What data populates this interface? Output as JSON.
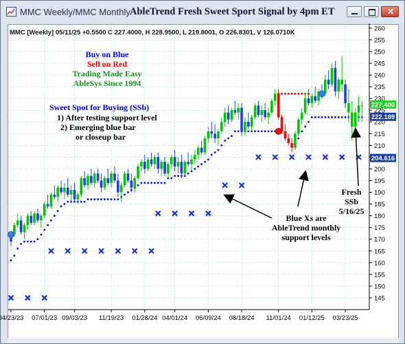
{
  "window": {
    "title": "MMC Weekly/MMC Monthly",
    "chart_title": "AbleTrend Fresh Sweet Sport Signal by 4pm ET",
    "icon": "chart-app-icon",
    "buttons": [
      "minimize-icon",
      "restore-icon",
      "close-icon"
    ]
  },
  "colors": {
    "up_candle": "#00c800",
    "down_candle": "#1e3cff",
    "sell_candle": "#ff0000",
    "grid": "#9fe3e3",
    "blue_label": "#0000ff",
    "green_label": "#1e8f1e",
    "price_tag_green": "#2ecc2e",
    "price_tag_blue": "#1f3f9e"
  },
  "header_line": "MMC [Weekly] 05/11/25 +0.5500 C 227.4000, H 228.9500, L 219.8001, O 226.8301, V 126.0710K",
  "legend": {
    "line1": "Buy on Blue",
    "line2": "Sell on Red",
    "line3": "Trading Made Easy",
    "line4": "AbleSys Since 1994"
  },
  "sweet_spot": {
    "title": "Sweet Spot for Buying (SSb)",
    "item1": "1) After testing support level",
    "item2": "2) Emerging blue bar",
    "item3": "or closeup bar"
  },
  "annotations": {
    "blue_xs": [
      "Blue Xs are",
      "AbleTrend monthly",
      "support levels"
    ],
    "fresh": [
      "Fresh",
      "SSb",
      "5/16/25"
    ]
  },
  "price_tags": [
    "227.400",
    "222.189",
    "204.616"
  ],
  "chart_data": {
    "type": "candlestick",
    "ylim": [
      140,
      262
    ],
    "y_ticks": [
      145,
      150,
      155,
      160,
      165,
      170,
      175,
      180,
      185,
      190,
      195,
      200,
      205,
      210,
      215,
      220,
      225,
      230,
      235,
      240,
      245,
      250,
      255,
      260
    ],
    "x_ticks": [
      {
        "label": "04/23/23",
        "week": 0
      },
      {
        "label": "07/01/23",
        "week": 10
      },
      {
        "label": "09/03/23",
        "week": 19
      },
      {
        "label": "11/19/23",
        "week": 30
      },
      {
        "label": "01/28/24",
        "week": 40
      },
      {
        "label": "04/01/24",
        "week": 49
      },
      {
        "label": "06/09/24",
        "week": 59
      },
      {
        "label": "08/18/24",
        "week": 69
      },
      {
        "label": "11/01/24",
        "week": 80
      },
      {
        "label": "01/12/25",
        "week": 90
      },
      {
        "label": "03/23/25",
        "week": 100
      }
    ],
    "weeks": 108,
    "candles": [
      [
        0,
        169,
        173,
        167,
        172,
        "B"
      ],
      [
        1,
        172,
        177,
        171,
        176,
        "U"
      ],
      [
        2,
        176,
        181,
        175,
        178,
        "U"
      ],
      [
        3,
        178,
        180,
        172,
        173,
        "D"
      ],
      [
        4,
        173,
        177,
        170,
        176,
        "U"
      ],
      [
        5,
        176,
        181,
        174,
        180,
        "U"
      ],
      [
        6,
        180,
        182,
        176,
        177,
        "D"
      ],
      [
        7,
        177,
        182,
        176,
        181,
        "U"
      ],
      [
        8,
        181,
        183,
        177,
        178,
        "D"
      ],
      [
        9,
        178,
        181,
        175,
        180,
        "U"
      ],
      [
        10,
        180,
        186,
        179,
        185,
        "U"
      ],
      [
        11,
        185,
        189,
        183,
        184,
        "D"
      ],
      [
        12,
        184,
        190,
        183,
        189,
        "U"
      ],
      [
        13,
        189,
        193,
        187,
        188,
        "D"
      ],
      [
        14,
        188,
        193,
        186,
        192,
        "U"
      ],
      [
        15,
        192,
        195,
        189,
        190,
        "D"
      ],
      [
        16,
        190,
        194,
        187,
        192,
        "U"
      ],
      [
        17,
        192,
        196,
        188,
        189,
        "D"
      ],
      [
        18,
        189,
        193,
        186,
        191,
        "U"
      ],
      [
        19,
        191,
        194,
        186,
        187,
        "D"
      ],
      [
        20,
        187,
        190,
        185,
        189,
        "U"
      ],
      [
        21,
        189,
        197,
        188,
        196,
        "U"
      ],
      [
        22,
        196,
        199,
        192,
        193,
        "D"
      ],
      [
        23,
        193,
        198,
        191,
        197,
        "U"
      ],
      [
        24,
        197,
        200,
        193,
        194,
        "D"
      ],
      [
        25,
        194,
        199,
        192,
        198,
        "U"
      ],
      [
        26,
        198,
        200,
        194,
        195,
        "D"
      ],
      [
        27,
        195,
        198,
        190,
        192,
        "D"
      ],
      [
        28,
        192,
        197,
        191,
        196,
        "U"
      ],
      [
        29,
        196,
        200,
        193,
        194,
        "D"
      ],
      [
        30,
        194,
        199,
        192,
        198,
        "U"
      ],
      [
        31,
        198,
        201,
        194,
        195,
        "D"
      ],
      [
        32,
        195,
        198,
        188,
        190,
        "D"
      ],
      [
        33,
        190,
        194,
        186,
        193,
        "U"
      ],
      [
        34,
        193,
        199,
        192,
        198,
        "U"
      ],
      [
        35,
        198,
        200,
        194,
        195,
        "D"
      ],
      [
        36,
        195,
        198,
        190,
        192,
        "D"
      ],
      [
        37,
        192,
        197,
        190,
        196,
        "U"
      ],
      [
        38,
        196,
        202,
        195,
        201,
        "U"
      ],
      [
        39,
        201,
        204,
        199,
        203,
        "U"
      ],
      [
        40,
        203,
        206,
        198,
        200,
        "D"
      ],
      [
        41,
        200,
        205,
        199,
        204,
        "U"
      ],
      [
        42,
        204,
        207,
        201,
        202,
        "D"
      ],
      [
        43,
        202,
        206,
        200,
        205,
        "U"
      ],
      [
        44,
        205,
        207,
        198,
        200,
        "D"
      ],
      [
        45,
        200,
        204,
        197,
        203,
        "U"
      ],
      [
        46,
        203,
        205,
        197,
        198,
        "D"
      ],
      [
        47,
        198,
        203,
        196,
        202,
        "U"
      ],
      [
        48,
        202,
        206,
        200,
        205,
        "U"
      ],
      [
        49,
        205,
        208,
        199,
        201,
        "D"
      ],
      [
        50,
        201,
        205,
        198,
        203,
        "U"
      ],
      [
        51,
        203,
        206,
        196,
        198,
        "D"
      ],
      [
        52,
        198,
        204,
        197,
        203,
        "U"
      ],
      [
        53,
        203,
        207,
        201,
        202,
        "D"
      ],
      [
        54,
        202,
        206,
        199,
        204,
        "U"
      ],
      [
        55,
        204,
        208,
        202,
        206,
        "U"
      ],
      [
        56,
        206,
        210,
        204,
        209,
        "U"
      ],
      [
        57,
        209,
        212,
        206,
        207,
        "D"
      ],
      [
        58,
        207,
        214,
        206,
        213,
        "U"
      ],
      [
        59,
        213,
        218,
        211,
        216,
        "U"
      ],
      [
        60,
        216,
        220,
        213,
        215,
        "D"
      ],
      [
        61,
        215,
        219,
        211,
        213,
        "D"
      ],
      [
        62,
        213,
        217,
        210,
        216,
        "U"
      ],
      [
        63,
        216,
        222,
        215,
        220,
        "U"
      ],
      [
        64,
        220,
        226,
        218,
        224,
        "U"
      ],
      [
        65,
        224,
        227,
        219,
        221,
        "D"
      ],
      [
        66,
        221,
        226,
        220,
        225,
        "U"
      ],
      [
        67,
        225,
        229,
        223,
        224,
        "D"
      ],
      [
        68,
        224,
        228,
        221,
        226,
        "U"
      ],
      [
        69,
        226,
        228,
        214,
        216,
        "D"
      ],
      [
        70,
        216,
        222,
        214,
        220,
        "U"
      ],
      [
        71,
        220,
        224,
        217,
        218,
        "D"
      ],
      [
        72,
        218,
        223,
        216,
        222,
        "U"
      ],
      [
        73,
        222,
        228,
        221,
        227,
        "U"
      ],
      [
        74,
        227,
        229,
        222,
        223,
        "D"
      ],
      [
        75,
        223,
        227,
        220,
        225,
        "U"
      ],
      [
        76,
        225,
        228,
        221,
        222,
        "D"
      ],
      [
        77,
        222,
        226,
        219,
        224,
        "U"
      ],
      [
        78,
        224,
        230,
        223,
        229,
        "U"
      ],
      [
        79,
        229,
        234,
        227,
        232,
        "U"
      ],
      [
        80,
        232,
        234,
        221,
        222,
        "S"
      ],
      [
        81,
        222,
        223,
        215,
        216,
        "S"
      ],
      [
        82,
        216,
        219,
        212,
        213,
        "S"
      ],
      [
        83,
        213,
        215,
        210,
        211,
        "S"
      ],
      [
        84,
        211,
        213,
        207,
        209,
        "S"
      ],
      [
        85,
        209,
        216,
        208,
        215,
        "U"
      ],
      [
        86,
        215,
        222,
        214,
        221,
        "U"
      ],
      [
        87,
        221,
        226,
        219,
        224,
        "U"
      ],
      [
        88,
        224,
        232,
        223,
        230,
        "U"
      ],
      [
        89,
        230,
        234,
        227,
        228,
        "D"
      ],
      [
        90,
        228,
        232,
        226,
        231,
        "U"
      ],
      [
        91,
        231,
        235,
        228,
        229,
        "D"
      ],
      [
        92,
        229,
        234,
        227,
        233,
        "U"
      ],
      [
        93,
        233,
        236,
        230,
        232,
        "B"
      ],
      [
        94,
        232,
        240,
        231,
        238,
        "U"
      ],
      [
        95,
        238,
        242,
        234,
        236,
        "D"
      ],
      [
        96,
        236,
        245,
        235,
        243,
        "U"
      ],
      [
        97,
        243,
        246,
        231,
        233,
        "D"
      ],
      [
        98,
        233,
        239,
        230,
        238,
        "U"
      ],
      [
        99,
        238,
        248,
        233,
        236,
        "U"
      ],
      [
        100,
        236,
        238,
        226,
        228,
        "D"
      ],
      [
        101,
        228,
        234,
        220,
        224,
        "U"
      ],
      [
        102,
        224,
        229,
        212,
        218,
        "U"
      ],
      [
        103,
        218,
        226,
        214,
        224,
        "U"
      ],
      [
        104,
        224,
        231,
        220,
        227,
        "U"
      ],
      [
        105,
        227,
        229,
        220,
        227,
        "U"
      ]
    ],
    "support_dots": [
      [
        0,
        161
      ],
      [
        1,
        163
      ],
      [
        2,
        166
      ],
      [
        3,
        168
      ],
      [
        4,
        169
      ],
      [
        5,
        169
      ],
      [
        6,
        169
      ],
      [
        7,
        169
      ],
      [
        8,
        170
      ],
      [
        9,
        172
      ],
      [
        10,
        174
      ],
      [
        11,
        176
      ],
      [
        12,
        178
      ],
      [
        13,
        180
      ],
      [
        14,
        182
      ],
      [
        15,
        184
      ],
      [
        16,
        185
      ],
      [
        17,
        186
      ],
      [
        18,
        186
      ],
      [
        19,
        186
      ],
      [
        20,
        186
      ],
      [
        21,
        186
      ],
      [
        22,
        186
      ],
      [
        23,
        187
      ],
      [
        24,
        187
      ],
      [
        25,
        187
      ],
      [
        26,
        187
      ],
      [
        27,
        187
      ],
      [
        28,
        187
      ],
      [
        29,
        187
      ],
      [
        30,
        187
      ],
      [
        31,
        187
      ],
      [
        32,
        187
      ],
      [
        33,
        188
      ],
      [
        34,
        189
      ],
      [
        35,
        190
      ],
      [
        36,
        191
      ],
      [
        37,
        192
      ],
      [
        38,
        193
      ],
      [
        39,
        194
      ],
      [
        40,
        194
      ],
      [
        41,
        194
      ],
      [
        42,
        194
      ],
      [
        43,
        194
      ],
      [
        44,
        194
      ],
      [
        45,
        194
      ],
      [
        46,
        194
      ],
      [
        47,
        196
      ],
      [
        48,
        196
      ],
      [
        49,
        197
      ],
      [
        50,
        197
      ],
      [
        51,
        197
      ],
      [
        52,
        197
      ],
      [
        53,
        198
      ],
      [
        54,
        199
      ],
      [
        55,
        200
      ],
      [
        56,
        201
      ],
      [
        57,
        202
      ],
      [
        58,
        203
      ],
      [
        59,
        204
      ],
      [
        60,
        206
      ],
      [
        61,
        207
      ],
      [
        62,
        208
      ],
      [
        63,
        210
      ],
      [
        64,
        212
      ],
      [
        65,
        213
      ],
      [
        66,
        214
      ],
      [
        67,
        216
      ],
      [
        68,
        216
      ],
      [
        69,
        216
      ],
      [
        70,
        216
      ],
      [
        71,
        216
      ],
      [
        72,
        216
      ],
      [
        73,
        216
      ],
      [
        74,
        216
      ],
      [
        75,
        216
      ],
      [
        76,
        216
      ],
      [
        77,
        216
      ],
      [
        78,
        216
      ],
      [
        79,
        216
      ],
      [
        85,
        210
      ],
      [
        86,
        213
      ],
      [
        87,
        216
      ],
      [
        88,
        218
      ],
      [
        89,
        220
      ],
      [
        90,
        222
      ],
      [
        91,
        222
      ],
      [
        92,
        222
      ],
      [
        93,
        222
      ],
      [
        94,
        222
      ],
      [
        95,
        222
      ],
      [
        96,
        222
      ],
      [
        97,
        222
      ],
      [
        98,
        222
      ],
      [
        99,
        222
      ],
      [
        100,
        222
      ],
      [
        101,
        222
      ],
      [
        102,
        222
      ],
      [
        103,
        222
      ],
      [
        104,
        222
      ],
      [
        105,
        222
      ]
    ],
    "resistance_dots": [
      [
        80,
        232
      ],
      [
        81,
        232
      ],
      [
        82,
        232
      ],
      [
        83,
        232
      ],
      [
        84,
        232
      ],
      [
        85,
        232
      ],
      [
        86,
        232
      ],
      [
        87,
        232
      ],
      [
        88,
        232
      ],
      [
        89,
        232
      ]
    ],
    "signal_circles": [
      [
        0,
        172,
        "blue"
      ],
      [
        80,
        216,
        "red"
      ],
      [
        93,
        232,
        "blue"
      ]
    ],
    "monthly_support_x": [
      [
        0,
        145
      ],
      [
        5,
        145
      ],
      [
        10,
        145
      ],
      [
        12,
        165
      ],
      [
        17,
        165
      ],
      [
        22,
        165
      ],
      [
        27,
        165
      ],
      [
        32,
        165
      ],
      [
        37,
        165
      ],
      [
        42,
        165
      ],
      [
        44,
        181
      ],
      [
        49,
        181
      ],
      [
        54,
        181
      ],
      [
        59,
        181
      ],
      [
        64,
        193
      ],
      [
        69,
        193
      ],
      [
        74,
        205
      ],
      [
        79,
        205
      ],
      [
        84,
        205
      ],
      [
        89,
        205
      ],
      [
        94,
        205
      ],
      [
        99,
        205
      ],
      [
        104,
        205
      ]
    ]
  }
}
